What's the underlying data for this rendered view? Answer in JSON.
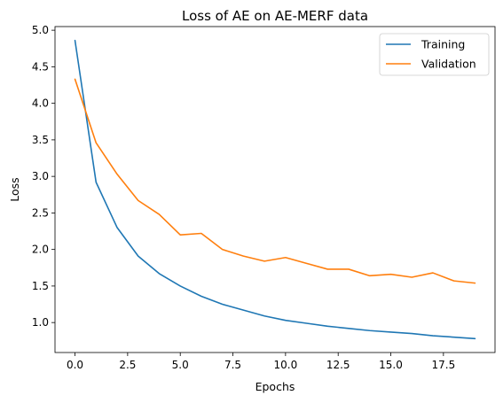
{
  "chart_data": {
    "type": "line",
    "title": "Loss of AE on AE-MERF data",
    "xlabel": "Epochs",
    "ylabel": "Loss",
    "xlim": [
      -0.95,
      19.95
    ],
    "ylim": [
      0.59,
      5.05
    ],
    "xticks": [
      0,
      2.5,
      5,
      7.5,
      10,
      12.5,
      15,
      17.5
    ],
    "xtick_labels": [
      "0.0",
      "2.5",
      "5.0",
      "7.5",
      "10.0",
      "12.5",
      "15.0",
      "17.5"
    ],
    "yticks": [
      1.0,
      1.5,
      2.0,
      2.5,
      3.0,
      3.5,
      4.0,
      4.5,
      5.0
    ],
    "ytick_labels": [
      "1.0",
      "1.5",
      "2.0",
      "2.5",
      "3.0",
      "3.5",
      "4.0",
      "4.5",
      "5.0"
    ],
    "grid": false,
    "legend_position": "top-right",
    "x": [
      0,
      1,
      2,
      3,
      4,
      5,
      6,
      7,
      8,
      9,
      10,
      11,
      12,
      13,
      14,
      15,
      16,
      17,
      18,
      19
    ],
    "series": [
      {
        "name": "Training",
        "color": "#1f77b4",
        "values": [
          4.86,
          2.92,
          2.3,
          1.91,
          1.67,
          1.5,
          1.36,
          1.25,
          1.17,
          1.09,
          1.03,
          0.99,
          0.95,
          0.92,
          0.89,
          0.87,
          0.85,
          0.82,
          0.8,
          0.78
        ]
      },
      {
        "name": "Validation",
        "color": "#ff7f0e",
        "values": [
          4.33,
          3.46,
          3.03,
          2.67,
          2.48,
          2.2,
          2.22,
          2.0,
          1.91,
          1.84,
          1.89,
          1.81,
          1.73,
          1.73,
          1.64,
          1.66,
          1.62,
          1.68,
          1.57,
          1.54
        ]
      }
    ]
  }
}
